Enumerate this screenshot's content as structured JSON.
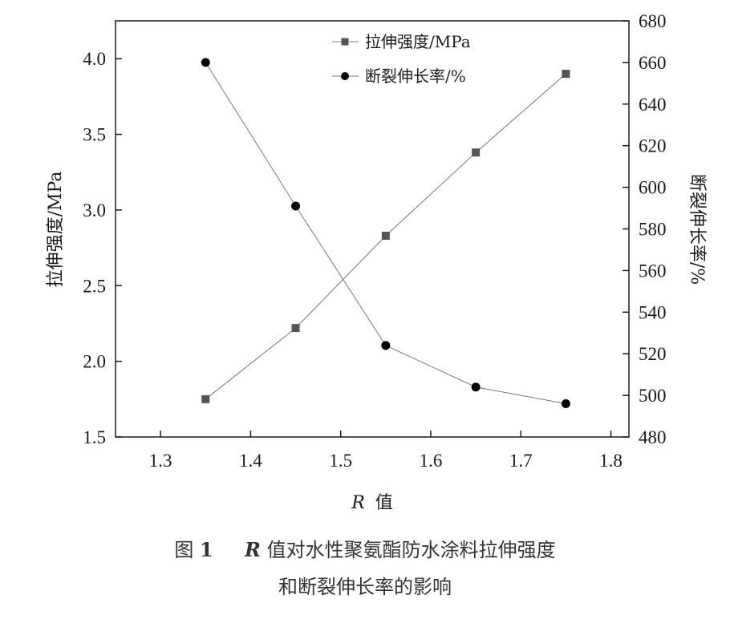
{
  "chart_data": {
    "type": "line",
    "x": [
      1.35,
      1.45,
      1.55,
      1.65,
      1.75
    ],
    "x_ticks": [
      "1.3",
      "1.4",
      "1.5",
      "1.6",
      "1.7",
      "1.8"
    ],
    "xlim": [
      1.25,
      1.82
    ],
    "xlabel_var": "R",
    "xlabel_suffix": "值",
    "y_left": {
      "label": "拉伸强度/MPa",
      "lim": [
        1.5,
        4.25
      ],
      "ticks": [
        "1.5",
        "2.0",
        "2.5",
        "3.0",
        "3.5",
        "4.0"
      ]
    },
    "y_right": {
      "label": "断裂伸长率/%",
      "lim": [
        480,
        680
      ],
      "ticks": [
        "480",
        "500",
        "520",
        "540",
        "560",
        "580",
        "600",
        "620",
        "640",
        "660",
        "680"
      ]
    },
    "series": [
      {
        "name": "拉伸强度/MPa",
        "axis": "left",
        "marker": "square",
        "color": "#555555",
        "values": [
          1.75,
          2.22,
          2.83,
          3.38,
          3.9
        ]
      },
      {
        "name": "断裂伸长率/%",
        "axis": "right",
        "marker": "circle",
        "color": "#000000",
        "values": [
          660,
          591,
          524,
          504,
          496
        ]
      }
    ],
    "grid": false,
    "legend": "top-right"
  },
  "caption": {
    "fig_label": "图",
    "fig_num": "1",
    "var": "R",
    "line1_rest": "值对水性聚氨酯防水涂料拉伸强度",
    "line2": "和断裂伸长率的影响"
  }
}
